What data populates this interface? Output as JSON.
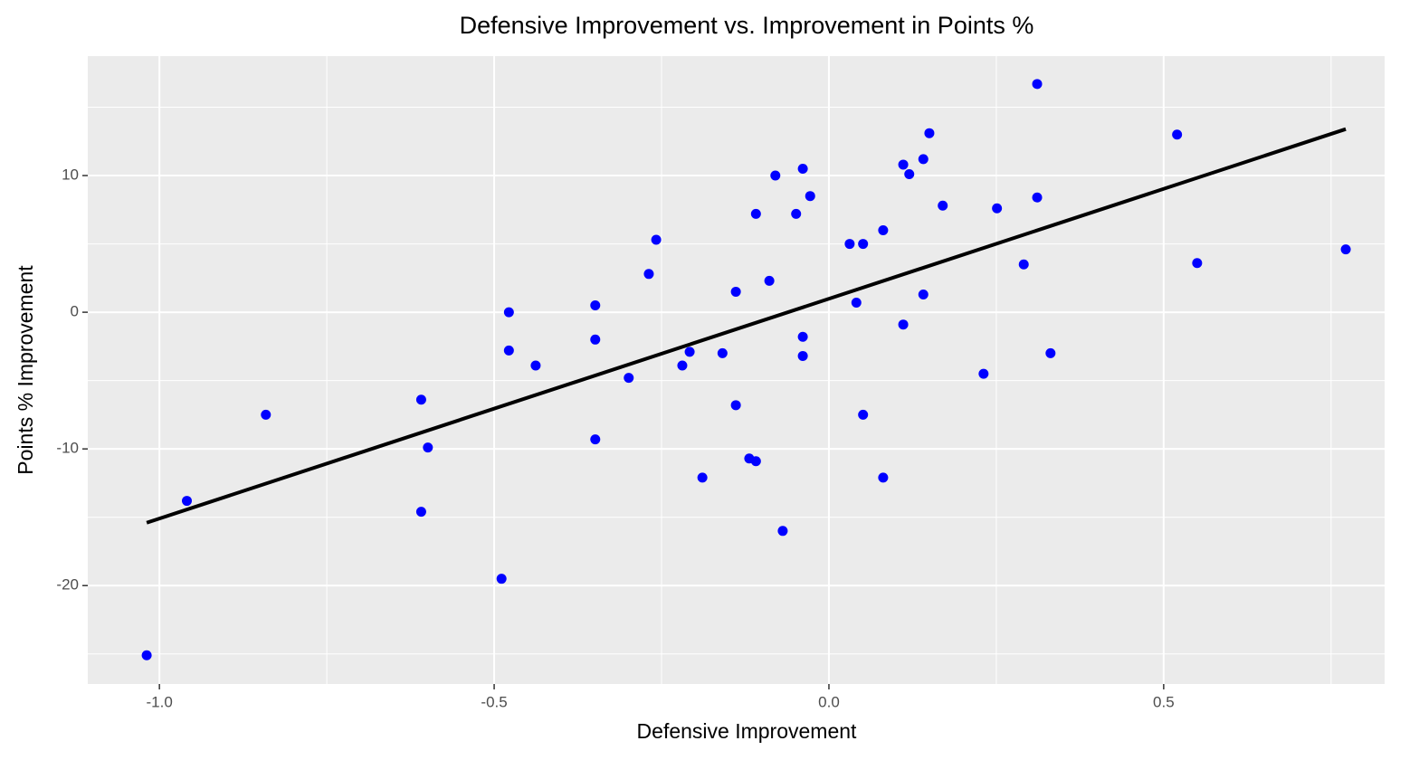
{
  "chart_data": {
    "type": "scatter",
    "title": "Defensive Improvement vs. Improvement in Points %",
    "xlabel": "Defensive Improvement",
    "ylabel": "Points % Improvement",
    "x": [
      -1.019,
      -0.959,
      -0.841,
      -0.609,
      -0.609,
      -0.599,
      -0.489,
      -0.478,
      -0.478,
      -0.438,
      -0.349,
      -0.349,
      -0.349,
      -0.299,
      -0.269,
      -0.258,
      -0.219,
      -0.208,
      -0.189,
      -0.159,
      -0.139,
      -0.139,
      -0.119,
      -0.109,
      -0.109,
      -0.089,
      -0.08,
      -0.069,
      -0.049,
      -0.039,
      -0.039,
      -0.039,
      -0.028,
      0.031,
      0.041,
      0.051,
      0.051,
      0.081,
      0.081,
      0.111,
      0.111,
      0.12,
      0.141,
      0.141,
      0.15,
      0.17,
      0.231,
      0.251,
      0.291,
      0.311,
      0.311,
      0.331,
      0.52,
      0.55,
      0.772
    ],
    "y": [
      -25.1,
      -13.8,
      -7.5,
      -6.4,
      -14.6,
      -9.9,
      -19.5,
      0.0,
      -2.8,
      -3.9,
      0.5,
      -2.0,
      -9.3,
      -4.8,
      2.8,
      5.3,
      -3.9,
      -2.9,
      -12.1,
      -3.0,
      1.5,
      -6.8,
      -10.7,
      -10.9,
      7.2,
      2.3,
      10.0,
      -16.0,
      7.2,
      10.5,
      -1.8,
      -3.2,
      8.5,
      5.0,
      0.7,
      5.0,
      -7.5,
      6.0,
      -12.1,
      10.8,
      -0.9,
      10.1,
      11.2,
      1.3,
      13.1,
      7.8,
      -4.5,
      7.6,
      3.5,
      16.7,
      8.4,
      -3.0,
      13.0,
      3.6,
      4.6
    ],
    "color": "#0000ff",
    "trend_line": {
      "x": [
        -1.019,
        0.772
      ],
      "y": [
        -15.4,
        13.4
      ],
      "color": "#000000"
    },
    "xlim": [
      -1.107,
      0.83
    ],
    "ylim": [
      -27.2,
      18.74
    ],
    "xticks": [
      {
        "value": -1.0,
        "label": "-1.0"
      },
      {
        "value": -0.5,
        "label": "-0.5"
      },
      {
        "value": 0.0,
        "label": "0.0"
      },
      0.5
    ],
    "yticks": [
      -20,
      -10,
      0,
      10
    ],
    "xminor": [
      -0.75,
      -0.25,
      0.25,
      0.75
    ],
    "yminor": [
      -25,
      -15,
      -5,
      5,
      15
    ],
    "grid": true
  }
}
